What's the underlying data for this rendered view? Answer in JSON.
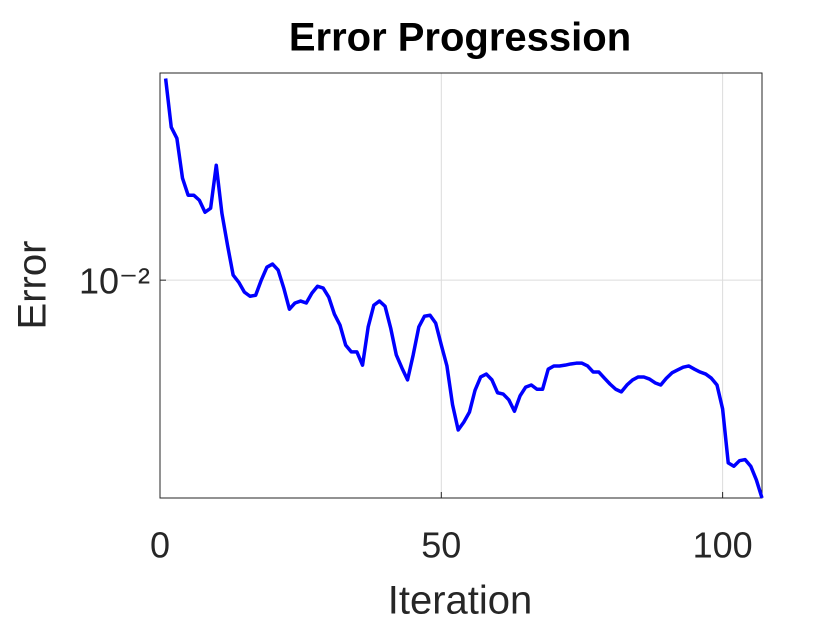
{
  "chart_data": {
    "type": "line",
    "title": "Error Progression",
    "x_label": "Iteration",
    "y_label": "Error",
    "x": [
      1,
      2,
      3,
      4,
      5,
      6,
      7,
      8,
      9,
      10,
      11,
      12,
      13,
      14,
      15,
      16,
      17,
      18,
      19,
      20,
      21,
      22,
      23,
      24,
      25,
      26,
      27,
      28,
      29,
      30,
      31,
      32,
      33,
      34,
      35,
      36,
      37,
      38,
      39,
      40,
      41,
      42,
      43,
      44,
      45,
      46,
      47,
      48,
      49,
      50,
      51,
      52,
      53,
      54,
      55,
      56,
      57,
      58,
      59,
      60,
      61,
      62,
      63,
      64,
      65,
      66,
      67,
      68,
      69,
      70,
      71,
      72,
      73,
      74,
      75,
      76,
      77,
      78,
      79,
      80,
      81,
      82,
      83,
      84,
      85,
      86,
      87,
      88,
      89,
      90,
      91,
      92,
      93,
      94,
      95,
      96,
      97,
      98,
      99,
      100,
      101,
      102,
      103,
      104,
      105,
      106,
      107
    ],
    "series": [
      {
        "name": "Error",
        "color": "#0000ff",
        "values": [
          0.01954,
          0.01662,
          0.01602,
          0.01403,
          0.01326,
          0.01326,
          0.01304,
          0.01253,
          0.0127,
          0.01465,
          0.01249,
          0.01123,
          0.01017,
          0.00993,
          0.00961,
          0.00948,
          0.00951,
          0.01,
          0.01044,
          0.01055,
          0.01034,
          0.00974,
          0.00908,
          0.00927,
          0.00933,
          0.00927,
          0.00958,
          0.0098,
          0.00974,
          0.00945,
          0.00893,
          0.00861,
          0.00806,
          0.00788,
          0.00788,
          0.00754,
          0.00856,
          0.0092,
          0.00933,
          0.00917,
          0.00853,
          0.0078,
          0.00747,
          0.00718,
          0.0078,
          0.00856,
          0.00887,
          0.0089,
          0.00867,
          0.00806,
          0.00752,
          0.00661,
          0.00608,
          0.00624,
          0.00645,
          0.00694,
          0.00725,
          0.00732,
          0.00718,
          0.00688,
          0.00685,
          0.00672,
          0.00647,
          0.00681,
          0.00701,
          0.00706,
          0.00696,
          0.00696,
          0.00744,
          0.00752,
          0.00752,
          0.00754,
          0.00757,
          0.00759,
          0.00759,
          0.00752,
          0.00737,
          0.00737,
          0.00722,
          0.00708,
          0.00696,
          0.0069,
          0.00706,
          0.00718,
          0.00725,
          0.00725,
          0.0072,
          0.00711,
          0.00706,
          0.00722,
          0.00735,
          0.00742,
          0.00749,
          0.00752,
          0.00744,
          0.00737,
          0.00732,
          0.00722,
          0.00706,
          0.00652,
          0.00545,
          0.00539,
          0.00549,
          0.00551,
          0.00539,
          0.00515,
          0.00485
        ]
      }
    ],
    "xlim": [
      0,
      107
    ],
    "xticks": [
      0,
      50,
      100
    ],
    "ylim": [
      0.00485,
      0.0199
    ],
    "yticks": [
      {
        "value": 0.01,
        "label": "10⁻²"
      }
    ],
    "y_scale": "log",
    "grid": true
  }
}
